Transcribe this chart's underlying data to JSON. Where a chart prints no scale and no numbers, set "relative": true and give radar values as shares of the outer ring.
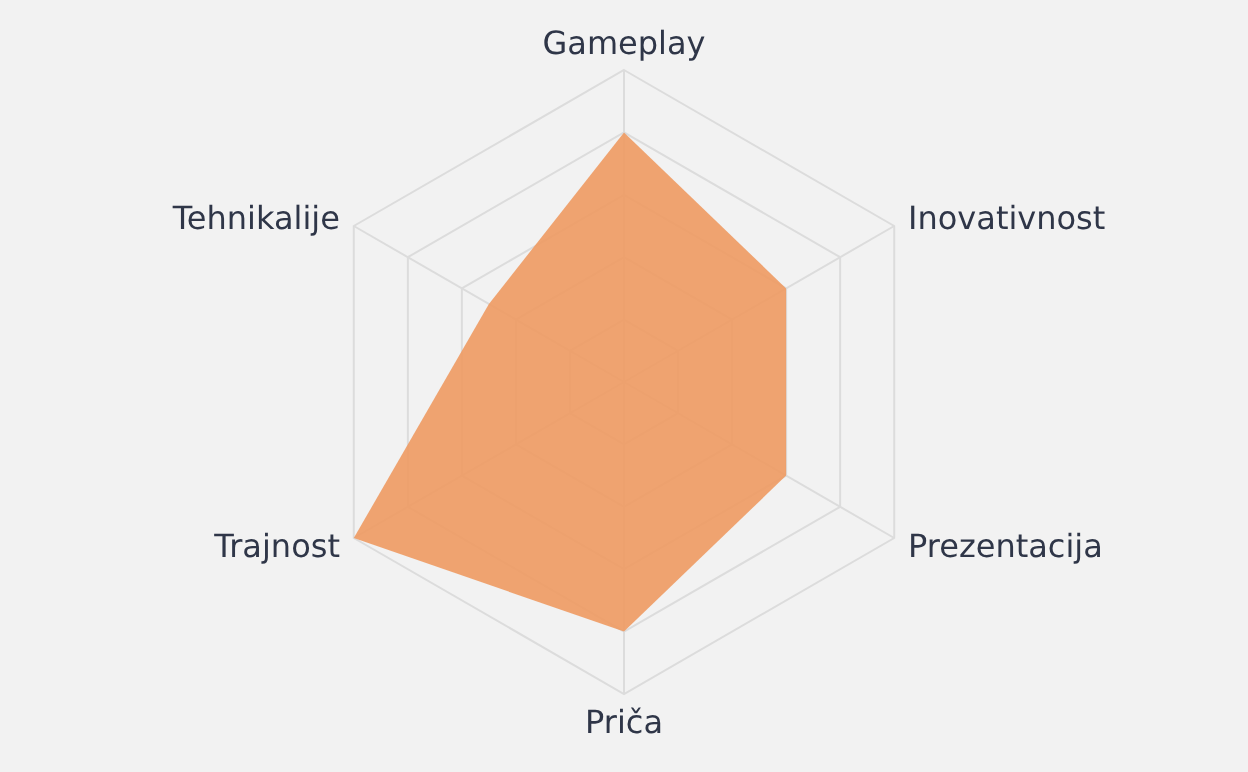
{
  "chart_data": {
    "type": "radar",
    "categories": [
      "Gameplay",
      "Inovativnost",
      "Prezentacija",
      "Priča",
      "Trajnost",
      "Tehnikalije"
    ],
    "series": [
      {
        "color": "#ee9a62",
        "values": [
          0.8,
          0.6,
          0.6,
          0.8,
          1,
          0.5
        ]
      }
    ],
    "relative": true,
    "grid": true
  }
}
